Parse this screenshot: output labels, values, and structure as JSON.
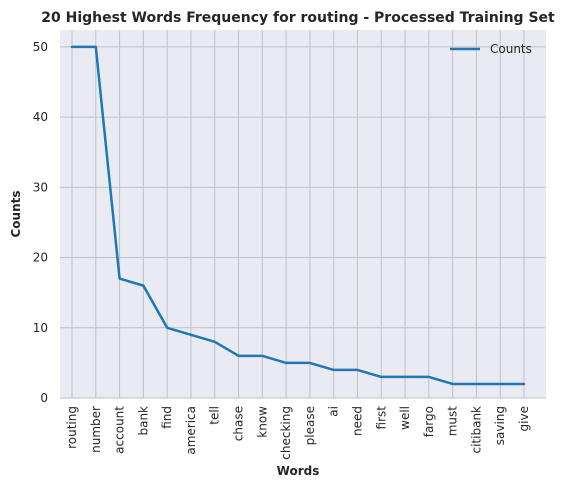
{
  "chart_data": {
    "type": "line",
    "title": "20 Highest Words Frequency for routing - Processed Training Set",
    "xlabel": "Words",
    "ylabel": "Counts",
    "categories": [
      "routing",
      "number",
      "account",
      "bank",
      "find",
      "america",
      "tell",
      "chase",
      "know",
      "checking",
      "please",
      "ai",
      "need",
      "first",
      "well",
      "fargo",
      "must",
      "citibank",
      "saving",
      "give"
    ],
    "series": [
      {
        "name": "Counts",
        "values": [
          50,
          50,
          17,
          16,
          10,
          9,
          8,
          6,
          6,
          5,
          5,
          4,
          4,
          3,
          3,
          3,
          2,
          2,
          2,
          2
        ]
      }
    ],
    "ylim": [
      0,
      52.4
    ],
    "yticks": [
      0,
      10,
      20,
      30,
      40,
      50
    ],
    "grid": true,
    "legend_position": "top-right",
    "colors": {
      "line": "#1f77b4",
      "plot_background": "#eaeaf2",
      "grid": "#c0c0c8"
    }
  }
}
